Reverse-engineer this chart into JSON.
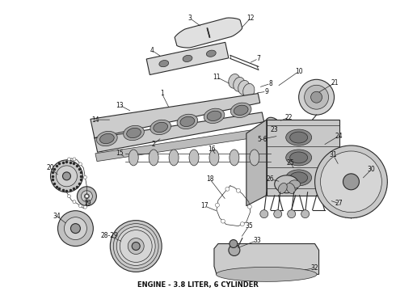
{
  "caption": "ENGINE - 3.8 LITER, 6 CYLINDER",
  "caption_fontsize": 6,
  "bg_color": "#ffffff",
  "fig_width": 4.9,
  "fig_height": 3.6,
  "dpi": 100,
  "line_color": "#2a2a2a",
  "text_color": "#111111",
  "part_fontsize": 5.5,
  "label_color": "#111111"
}
